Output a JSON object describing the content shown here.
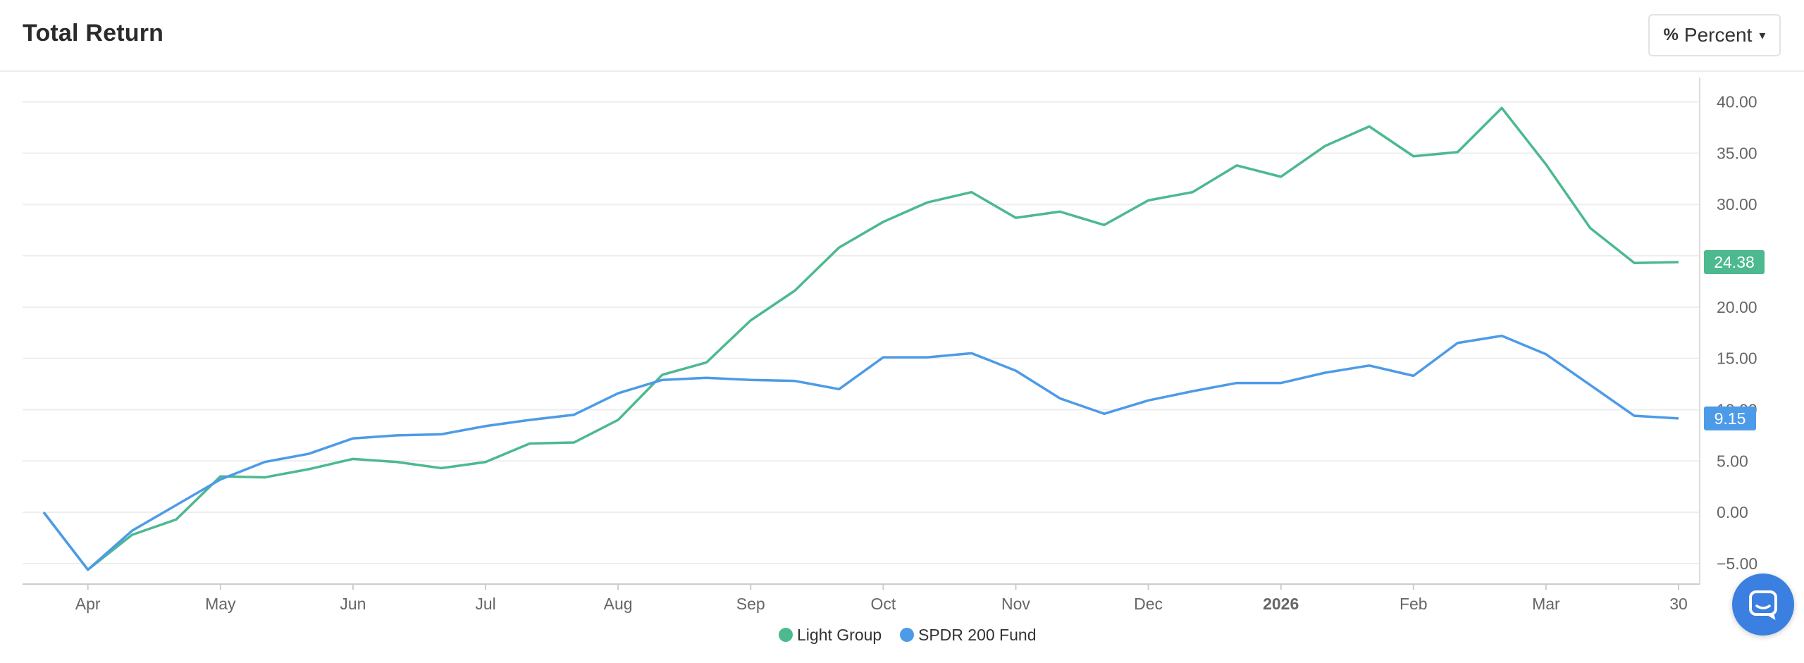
{
  "header": {
    "title": "Total Return",
    "dropdown_icon": "%",
    "dropdown_label": "Percent",
    "dropdown_caret": "▾"
  },
  "chart_data": {
    "type": "line",
    "title": "Total Return",
    "xlabel": "",
    "ylabel": "",
    "ylim": [
      -7,
      41
    ],
    "yticks": [
      -5,
      0,
      5,
      10,
      15,
      20,
      25,
      30,
      35,
      40
    ],
    "ytick_labels": [
      "−5.00",
      "0.00",
      "5.00",
      "10.00",
      "15.00",
      "20.00",
      "25.00",
      "30.00",
      "35.00",
      "40.00"
    ],
    "xtick_labels": [
      "Apr",
      "May",
      "Jun",
      "Jul",
      "Aug",
      "Sep",
      "Oct",
      "Nov",
      "Dec",
      "2026",
      "Feb",
      "Mar",
      "30"
    ],
    "x": [
      0,
      1,
      2,
      3,
      4,
      5,
      6,
      7,
      8,
      9,
      10,
      11,
      12,
      13,
      14,
      15,
      16,
      17,
      18,
      19,
      20,
      21,
      22,
      23,
      24,
      25,
      26,
      27,
      28,
      29,
      30,
      31,
      32,
      33,
      34,
      35,
      36,
      37
    ],
    "series": [
      {
        "name": "Light Group",
        "color": "#4cb98f",
        "last_label": "24.38",
        "values": [
          0,
          -5.6,
          -2.2,
          -0.7,
          3.5,
          3.4,
          4.2,
          5.2,
          4.9,
          4.3,
          4.9,
          6.7,
          6.8,
          9.0,
          13.4,
          14.6,
          18.7,
          21.6,
          25.8,
          28.3,
          30.2,
          31.2,
          28.7,
          29.3,
          28.0,
          30.4,
          31.2,
          33.8,
          32.7,
          35.7,
          37.6,
          34.7,
          35.1,
          39.4,
          33.9,
          27.7,
          24.3,
          24.38
        ]
      },
      {
        "name": "SPDR 200 Fund",
        "color": "#4c9be8",
        "last_label": "9.15",
        "values": [
          0,
          -5.6,
          -1.8,
          0.7,
          3.2,
          4.9,
          5.7,
          7.2,
          7.5,
          7.6,
          8.4,
          9.0,
          9.5,
          11.6,
          12.9,
          13.1,
          12.9,
          12.8,
          12.0,
          15.1,
          15.1,
          15.5,
          13.8,
          11.1,
          9.6,
          10.9,
          11.8,
          12.6,
          12.6,
          13.6,
          14.3,
          13.3,
          16.5,
          17.2,
          15.4,
          12.4,
          9.4,
          9.15
        ]
      }
    ],
    "grid": true,
    "legend_position": "bottom-center"
  },
  "chat_icon": "chat-bubble-icon"
}
